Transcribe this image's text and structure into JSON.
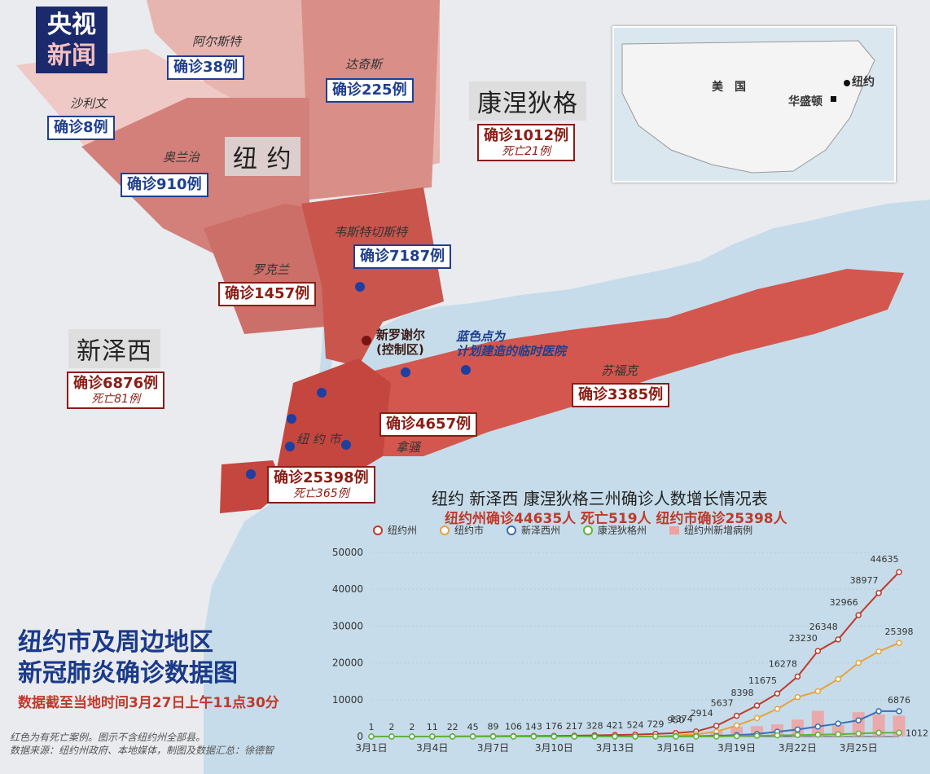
{
  "logo": {
    "line1": "央视",
    "line2": "新闻"
  },
  "regions": {
    "ny_state": "纽 约",
    "ct_state": "康涅狄格",
    "nj_state": "新泽西",
    "sullivan": "沙利文",
    "ulster": "阿尔斯特",
    "dutchess": "达奇斯",
    "orange": "奥兰治",
    "rockland": "罗克兰",
    "westchester": "韦斯特切斯特",
    "suffolk": "苏福克",
    "nassau": "拿骚",
    "nyc": "纽 约 市"
  },
  "counts": {
    "sullivan": "确诊8例",
    "ulster": "确诊38例",
    "dutchess": "确诊225例",
    "orange": "确诊910例",
    "rockland": "确诊1457例",
    "westchester": "确诊7187例",
    "suffolk": "确诊3385例",
    "nassau": "确诊4657例",
    "nyc": "确诊25398例",
    "nyc_deaths": "死亡365例",
    "ct": "确诊1012例",
    "ct_deaths": "死亡21例",
    "nj": "确诊6876例",
    "nj_deaths": "死亡81例"
  },
  "annotations": {
    "new_rochelle": "新罗谢尔",
    "control_zone": "(控制区)",
    "blue_note_1": "蓝色点为",
    "blue_note_2": "计划建造的临时医院"
  },
  "inset": {
    "usa": "美　国",
    "ny": "纽约",
    "dc": "华盛顿"
  },
  "title": {
    "line1": "纽约市及周边地区",
    "line2": "新冠肺炎确诊数据图",
    "date": "数据截至当地时间3月27日上午11点30分"
  },
  "footer": {
    "line1": "红色为有死亡案例。图示不含纽约州全部县。",
    "line2": "数据来源：纽约州政府、本地媒体，制图及数据汇总：徐德智"
  },
  "chart_data": {
    "type": "line",
    "title": "纽约 新泽西 康涅狄格三州确诊人数增长情况表",
    "subtitle": "纽约州确诊44635人 死亡519人 纽约市确诊25398人",
    "x": [
      "3月1日",
      "3月2日",
      "3月3日",
      "3月4日",
      "3月5日",
      "3月6日",
      "3月7日",
      "3月8日",
      "3月9日",
      "3月10日",
      "3月11日",
      "3月12日",
      "3月13日",
      "3月14日",
      "3月15日",
      "3月16日",
      "3月17日",
      "3月18日",
      "3月19日",
      "3月20日",
      "3月21日",
      "3月22日",
      "3月23日",
      "3月24日",
      "3月25日",
      "3月26日",
      "3月27日"
    ],
    "xticks": [
      "3月1日",
      "3月4日",
      "3月7日",
      "3月10日",
      "3月13日",
      "3月16日",
      "3月19日",
      "3月22日",
      "3月25日"
    ],
    "yticks": [
      0,
      10000,
      20000,
      30000,
      40000,
      50000
    ],
    "ylim": [
      0,
      50000
    ],
    "series": [
      {
        "name": "纽约州",
        "color": "#c0392b",
        "values": [
          1,
          2,
          2,
          11,
          22,
          45,
          89,
          106,
          143,
          176,
          217,
          328,
          421,
          524,
          729,
          950,
          1374,
          2914,
          5637,
          8398,
          11675,
          16278,
          23230,
          26348,
          32966,
          38977,
          44635
        ],
        "labels": [
          "1",
          "2",
          "2",
          "11",
          "22",
          "45",
          "89",
          "106",
          "143",
          "176",
          "217",
          "328",
          "421",
          "524",
          "729",
          "950",
          "1374",
          "2914",
          "5637",
          "8398",
          "11675",
          "16278",
          "23230",
          "26348",
          "32966",
          "38977",
          "44635"
        ]
      },
      {
        "name": "纽约市",
        "color": "#e6a23c",
        "values": [
          0,
          0,
          0,
          0,
          0,
          0,
          0,
          0,
          0,
          0,
          0,
          0,
          0,
          0,
          0,
          300,
          600,
          1300,
          3000,
          5000,
          7500,
          10700,
          12300,
          15600,
          20000,
          23100,
          25398
        ],
        "labels": [
          "",
          "",
          "",
          "",
          "",
          "",
          "",
          "",
          "",
          "",
          "",
          "",
          "",
          "",
          "",
          "",
          "",
          "",
          "",
          "",
          "",
          "",
          "",
          "",
          "",
          "",
          "25398"
        ]
      },
      {
        "name": "新泽西州",
        "color": "#3b6fb6",
        "values": [
          0,
          0,
          0,
          0,
          0,
          0,
          0,
          0,
          0,
          0,
          0,
          0,
          0,
          0,
          0,
          0,
          100,
          200,
          400,
          700,
          1300,
          1900,
          2700,
          3500,
          4400,
          6876,
          6876
        ],
        "labels": [
          "",
          "",
          "",
          "",
          "",
          "",
          "",
          "",
          "",
          "",
          "",
          "",
          "",
          "",
          "",
          "",
          "",
          "",
          "",
          "",
          "",
          "",
          "",
          "",
          "",
          "",
          "6876"
        ]
      },
      {
        "name": "康涅狄格州",
        "color": "#5fb43a",
        "values": [
          0,
          0,
          0,
          0,
          0,
          0,
          0,
          0,
          0,
          0,
          0,
          0,
          0,
          0,
          0,
          0,
          0,
          0,
          100,
          200,
          300,
          400,
          500,
          600,
          800,
          1012,
          1012
        ],
        "labels": [
          "",
          "",
          "",
          "",
          "",
          "",
          "",
          "",
          "",
          "",
          "",
          "",
          "",
          "",
          "",
          "",
          "",
          "",
          "",
          "",
          "",
          "",
          "",
          "",
          "",
          "",
          "1012"
        ]
      }
    ],
    "bars": {
      "name": "纽约州新增病例",
      "color": "#f0a0a0",
      "values": [
        0,
        0,
        0,
        0,
        0,
        0,
        0,
        0,
        0,
        0,
        0,
        0,
        0,
        0,
        0,
        0,
        0,
        1500,
        2700,
        2800,
        3300,
        4600,
        7000,
        3100,
        6600,
        6000,
        5658
      ]
    }
  }
}
